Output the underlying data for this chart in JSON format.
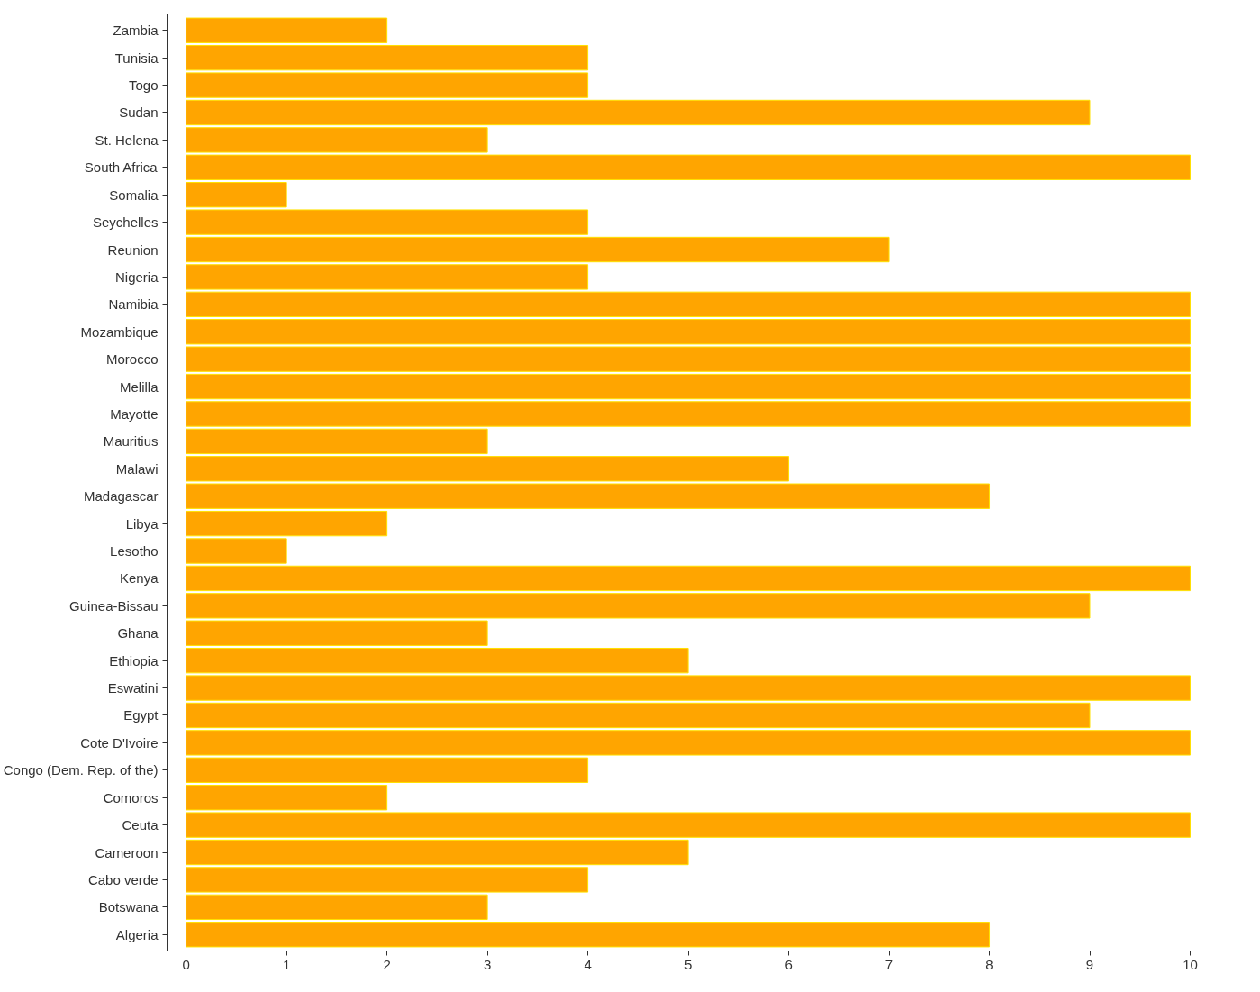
{
  "chart_data": {
    "type": "bar",
    "orientation": "horizontal",
    "categories": [
      "Zambia",
      "Tunisia",
      "Togo",
      "Sudan",
      "St. Helena",
      "South Africa",
      "Somalia",
      "Seychelles",
      "Reunion",
      "Nigeria",
      "Namibia",
      "Mozambique",
      "Morocco",
      "Melilla",
      "Mayotte",
      "Mauritius",
      "Malawi",
      "Madagascar",
      "Libya",
      "Lesotho",
      "Kenya",
      "Guinea-Bissau",
      "Ghana",
      "Ethiopia",
      "Eswatini",
      "Egypt",
      "Cote D'Ivoire",
      "Congo (Dem. Rep. of the)",
      "Comoros",
      "Ceuta",
      "Cameroon",
      "Cabo verde",
      "Botswana",
      "Algeria"
    ],
    "values": [
      2,
      4,
      4,
      9,
      3,
      10,
      1,
      4,
      7,
      4,
      10,
      10,
      10,
      10,
      10,
      3,
      6,
      8,
      2,
      1,
      10,
      9,
      3,
      5,
      10,
      9,
      10,
      4,
      2,
      10,
      5,
      4,
      3,
      8
    ],
    "color": "#ffa500",
    "xlim": [
      -0.19,
      10.35
    ],
    "xticks": [
      0,
      1,
      2,
      3,
      4,
      5,
      6,
      7,
      8,
      9,
      10
    ],
    "grid": false
  }
}
